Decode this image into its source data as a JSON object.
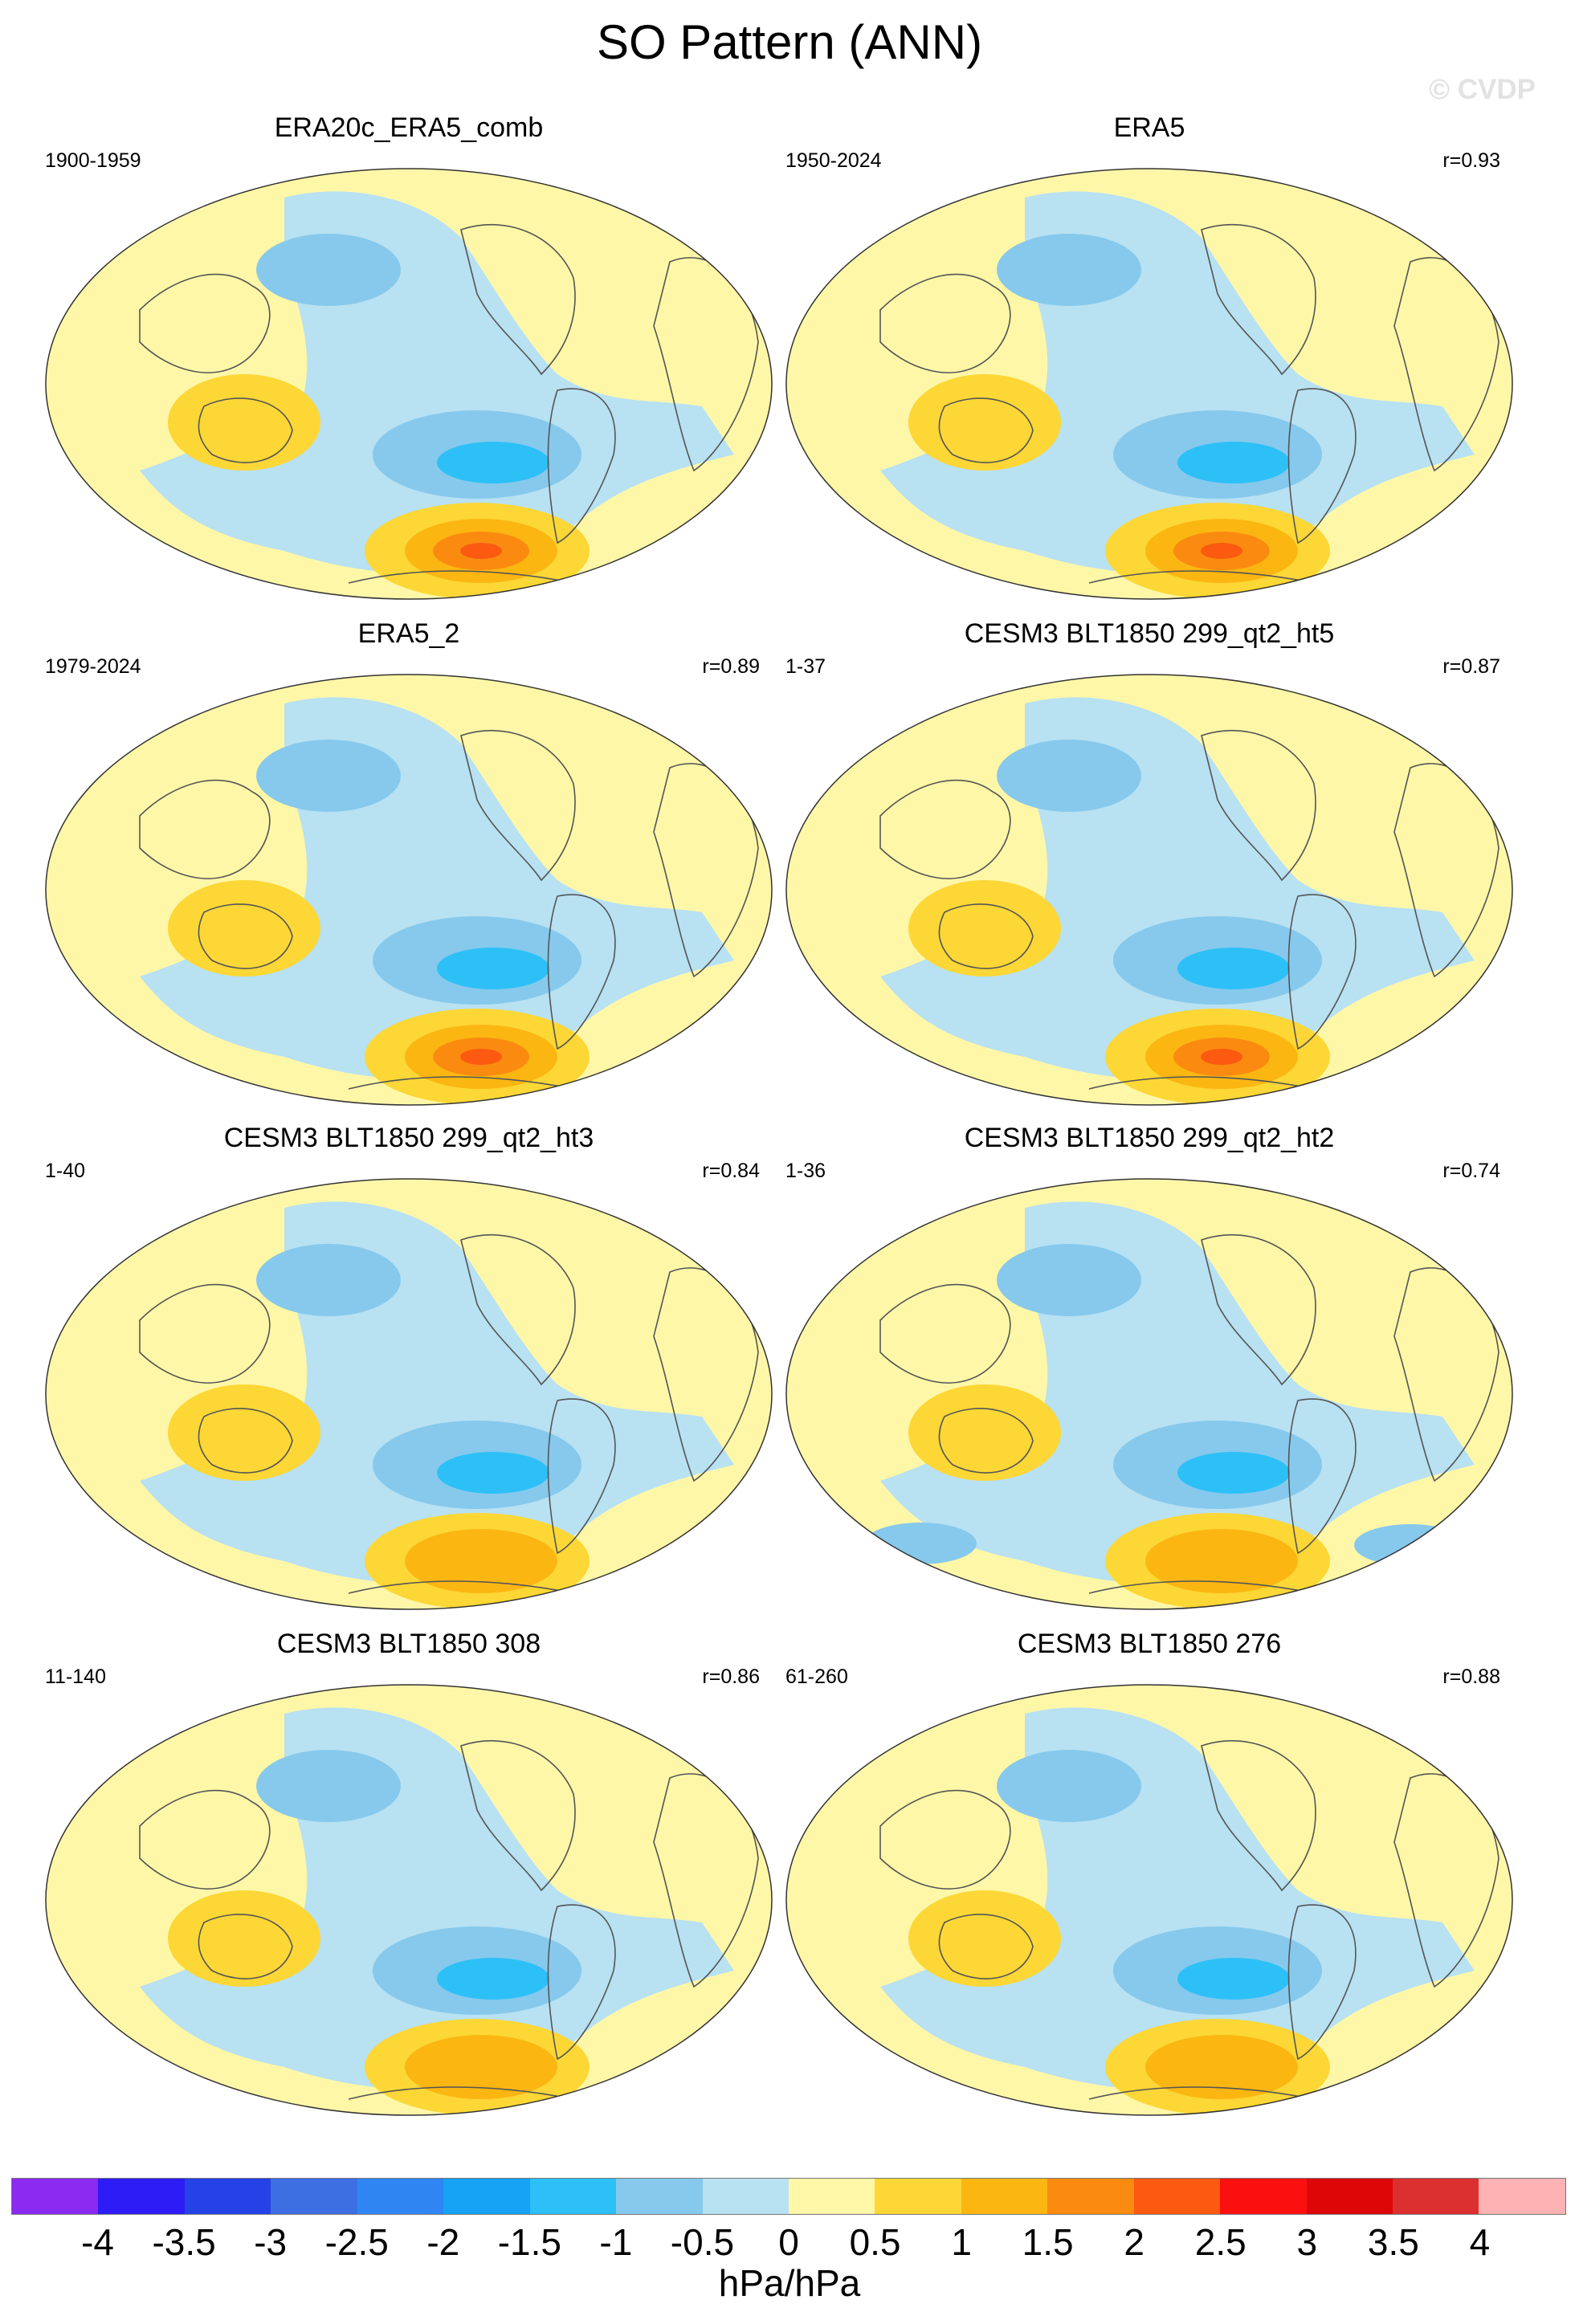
{
  "title": "SO Pattern (ANN)",
  "watermark": "© CVDP",
  "panels": [
    {
      "title": "ERA20c_ERA5_comb",
      "years": "1900-1959",
      "r": ""
    },
    {
      "title": "ERA5",
      "years": "1950-2024",
      "r": "r=0.93"
    },
    {
      "title": "ERA5_2",
      "years": "1979-2024",
      "r": "r=0.89"
    },
    {
      "title": "CESM3 BLT1850 299_qt2_ht5",
      "years": "1-37",
      "r": "r=0.87"
    },
    {
      "title": "CESM3 BLT1850 299_qt2_ht3",
      "years": "1-40",
      "r": "r=0.84"
    },
    {
      "title": "CESM3 BLT1850 299_qt2_ht2",
      "years": "1-36",
      "r": "r=0.74"
    },
    {
      "title": "CESM3 BLT1850 308",
      "years": "11-140",
      "r": "r=0.86"
    },
    {
      "title": "CESM3 BLT1850 276",
      "years": "61-260",
      "r": "r=0.88"
    }
  ],
  "colorbar": {
    "units": "hPa/hPa",
    "ticks": [
      "-4",
      "-3.5",
      "-3",
      "-2.5",
      "-2",
      "-1.5",
      "-1",
      "-0.5",
      "0",
      "0.5",
      "1",
      "1.5",
      "2",
      "2.5",
      "3",
      "3.5",
      "4"
    ],
    "colors": [
      "#8b2af0",
      "#2d1cf5",
      "#2442e6",
      "#3d6fe3",
      "#2f86f2",
      "#16a2f5",
      "#2dc0f7",
      "#86c9ec",
      "#b8e1f2",
      "#fff7a8",
      "#fcd736",
      "#fbb612",
      "#fb8b10",
      "#fb5a10",
      "#fb1010",
      "#de0707",
      "#dc2f30",
      "#fdb3b3"
    ]
  }
}
